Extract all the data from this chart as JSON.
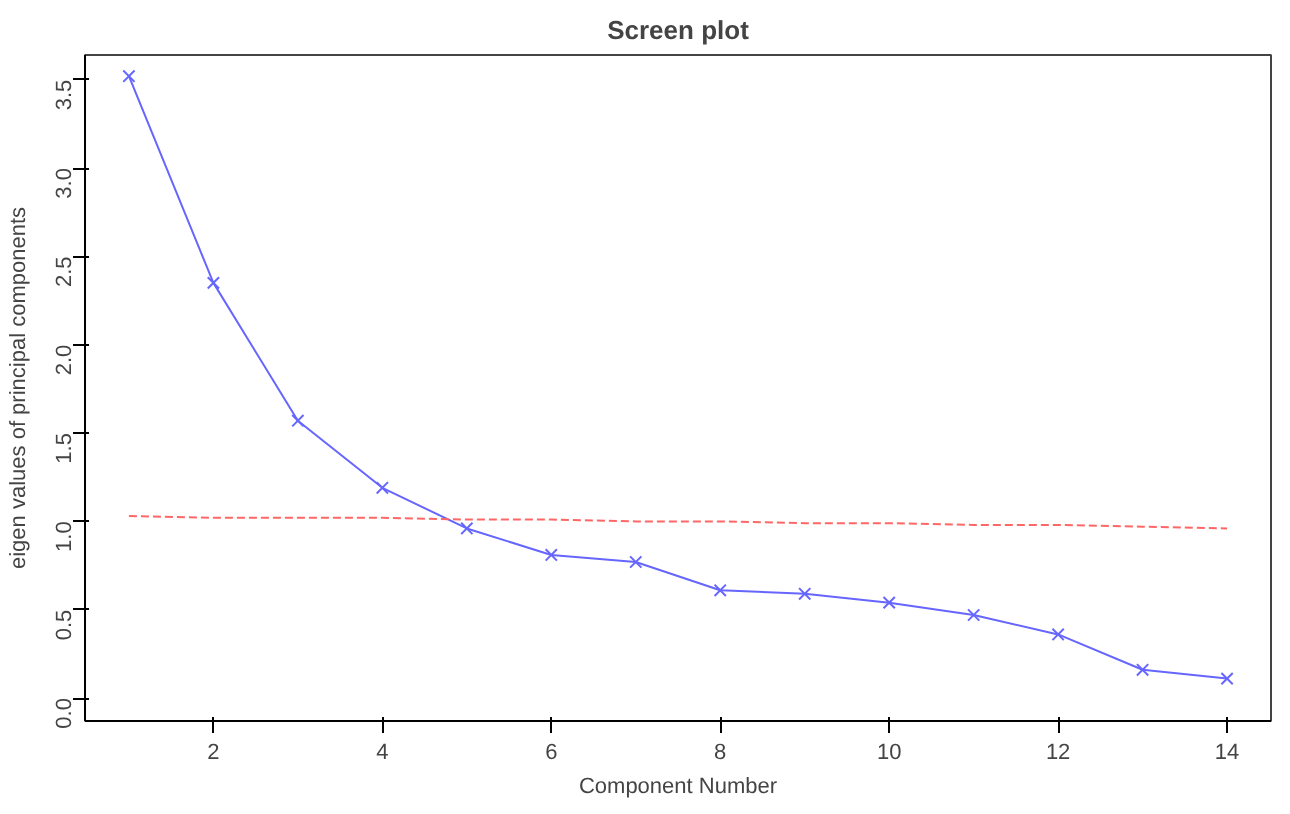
{
  "chart_data": {
    "type": "line",
    "title": "Screen plot",
    "xlabel": "Component Number",
    "ylabel": "eigen values of principal components",
    "x": [
      1,
      2,
      3,
      4,
      5,
      6,
      7,
      8,
      9,
      10,
      11,
      12,
      13,
      14
    ],
    "series": [
      {
        "color": "#6666ff",
        "marker": "cross",
        "line_style": "solid",
        "values": [
          3.52,
          2.35,
          1.57,
          1.19,
          0.96,
          0.81,
          0.77,
          0.61,
          0.59,
          0.54,
          0.47,
          0.36,
          0.16,
          0.11
        ]
      },
      {
        "color": "#ff6666",
        "marker": "none",
        "line_style": "dashed",
        "values": [
          1.03,
          1.02,
          1.02,
          1.02,
          1.01,
          1.01,
          1.0,
          1.0,
          0.99,
          0.99,
          0.98,
          0.98,
          0.97,
          0.96
        ]
      }
    ],
    "xlim": [
      0.48,
      14.52
    ],
    "ylim": [
      -0.13,
      3.64
    ],
    "xticks": [
      2,
      4,
      6,
      8,
      10,
      12,
      14
    ],
    "yticks": [
      {
        "value": 0,
        "label": "0.0"
      },
      0.5,
      {
        "value": 1,
        "label": "1.0"
      },
      1.5,
      {
        "value": 2,
        "label": "2.0"
      },
      2.5,
      {
        "value": 3,
        "label": "3.0"
      },
      3.5
    ],
    "grid": false
  }
}
